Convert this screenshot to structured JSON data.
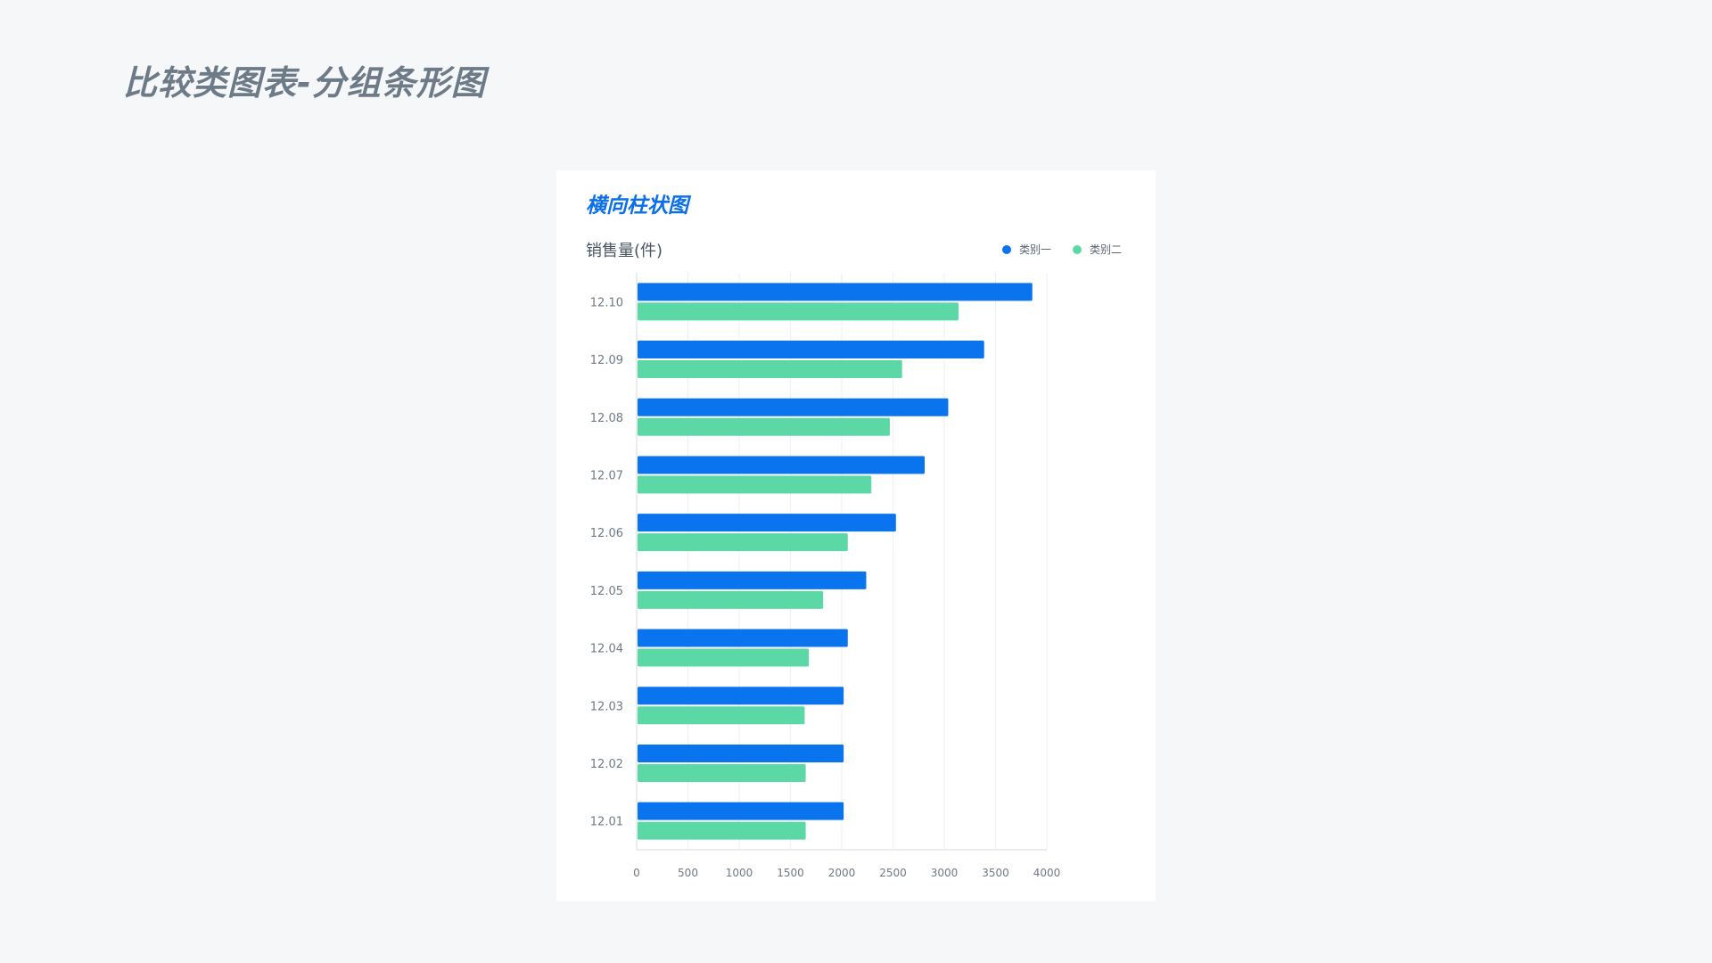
{
  "page": {
    "title": "比较类图表-分组条形图"
  },
  "card": {
    "title": "横向柱状图",
    "unit_label": "销售量(件)"
  },
  "colors": {
    "series1": "#0a73ee",
    "series2": "#5cd8a6",
    "grid": "#eceff3",
    "axis": "#d5dae0"
  },
  "chart_data": {
    "type": "bar",
    "orientation": "horizontal",
    "ylabel": "销售量(件)",
    "categories": [
      "12.10",
      "12.09",
      "12.08",
      "12.07",
      "12.06",
      "12.05",
      "12.04",
      "12.03",
      "12.02",
      "12.01"
    ],
    "series": [
      {
        "name": "类别一",
        "color": "#0a73ee",
        "values": [
          3850,
          3380,
          3030,
          2800,
          2520,
          2230,
          2050,
          2010,
          2010,
          2010
        ]
      },
      {
        "name": "类别二",
        "color": "#5cd8a6",
        "values": [
          3130,
          2580,
          2460,
          2280,
          2050,
          1810,
          1670,
          1630,
          1640,
          1640
        ]
      }
    ],
    "xlim": [
      0,
      4000
    ],
    "xticks": [
      "0",
      "500",
      "1000",
      "1500",
      "2000",
      "2500",
      "3000",
      "3500",
      "4000"
    ],
    "grid": true,
    "legend_position": "top-right"
  }
}
